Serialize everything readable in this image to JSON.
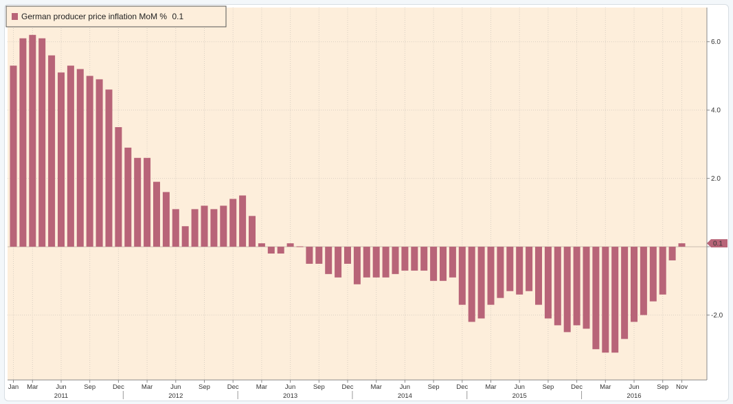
{
  "chart_data": {
    "type": "bar",
    "title": "German producer price inflation MoM % 0.1",
    "legend_label": "German producer price inflation MoM %",
    "legend_value": "0.1",
    "last_value_label": "0.1",
    "xlabel": "",
    "ylabel": "",
    "ylim": [
      -3.9,
      7.0
    ],
    "yticks": [
      6.0,
      4.0,
      2.0,
      0.0,
      -2.0
    ],
    "ytick_labels": [
      "6.0",
      "4.0",
      "2.0",
      "",
      "-2.0"
    ],
    "grid": true,
    "legend_position": "top-left",
    "x_month_ticks": [
      {
        "label": "Jan",
        "index": 0
      },
      {
        "label": "Mar",
        "index": 2
      },
      {
        "label": "Jun",
        "index": 5
      },
      {
        "label": "Sep",
        "index": 8
      },
      {
        "label": "Dec",
        "index": 11
      },
      {
        "label": "Mar",
        "index": 14
      },
      {
        "label": "Jun",
        "index": 17
      },
      {
        "label": "Sep",
        "index": 20
      },
      {
        "label": "Dec",
        "index": 23
      },
      {
        "label": "Mar",
        "index": 26
      },
      {
        "label": "Jun",
        "index": 29
      },
      {
        "label": "Sep",
        "index": 32
      },
      {
        "label": "Dec",
        "index": 35
      },
      {
        "label": "Mar",
        "index": 38
      },
      {
        "label": "Jun",
        "index": 41
      },
      {
        "label": "Sep",
        "index": 44
      },
      {
        "label": "Dec",
        "index": 47
      },
      {
        "label": "Mar",
        "index": 50
      },
      {
        "label": "Jun",
        "index": 53
      },
      {
        "label": "Sep",
        "index": 56
      },
      {
        "label": "Dec",
        "index": 59
      },
      {
        "label": "Mar",
        "index": 62
      },
      {
        "label": "Jun",
        "index": 65
      },
      {
        "label": "Sep",
        "index": 68
      },
      {
        "label": "Nov",
        "index": 70
      }
    ],
    "x_year_ticks": [
      {
        "label": "2011",
        "index": 5
      },
      {
        "label": "2012",
        "index": 17
      },
      {
        "label": "2013",
        "index": 29
      },
      {
        "label": "2014",
        "index": 41
      },
      {
        "label": "2015",
        "index": 53
      },
      {
        "label": "2016",
        "index": 65
      }
    ],
    "categories": [
      "Jan 2011",
      "Feb 2011",
      "Mar 2011",
      "Apr 2011",
      "May 2011",
      "Jun 2011",
      "Jul 2011",
      "Aug 2011",
      "Sep 2011",
      "Oct 2011",
      "Nov 2011",
      "Dec 2011",
      "Jan 2012",
      "Feb 2012",
      "Mar 2012",
      "Apr 2012",
      "May 2012",
      "Jun 2012",
      "Jul 2012",
      "Aug 2012",
      "Sep 2012",
      "Oct 2012",
      "Nov 2012",
      "Dec 2012",
      "Jan 2013",
      "Feb 2013",
      "Mar 2013",
      "Apr 2013",
      "May 2013",
      "Jun 2013",
      "Jul 2013",
      "Aug 2013",
      "Sep 2013",
      "Oct 2013",
      "Nov 2013",
      "Dec 2013",
      "Jan 2014",
      "Feb 2014",
      "Mar 2014",
      "Apr 2014",
      "May 2014",
      "Jun 2014",
      "Jul 2014",
      "Aug 2014",
      "Sep 2014",
      "Oct 2014",
      "Nov 2014",
      "Dec 2014",
      "Jan 2015",
      "Feb 2015",
      "Mar 2015",
      "Apr 2015",
      "May 2015",
      "Jun 2015",
      "Jul 2015",
      "Aug 2015",
      "Sep 2015",
      "Oct 2015",
      "Nov 2015",
      "Dec 2015",
      "Jan 2016",
      "Feb 2016",
      "Mar 2016",
      "Apr 2016",
      "May 2016",
      "Jun 2016",
      "Jul 2016",
      "Aug 2016",
      "Sep 2016",
      "Oct 2016",
      "Nov 2016"
    ],
    "series": [
      {
        "name": "German producer price inflation MoM %",
        "values": [
          5.3,
          6.1,
          6.2,
          6.1,
          5.6,
          5.1,
          5.3,
          5.2,
          5.0,
          4.9,
          4.6,
          3.5,
          2.9,
          2.6,
          2.6,
          1.9,
          1.6,
          1.1,
          0.6,
          1.1,
          1.2,
          1.1,
          1.2,
          1.4,
          1.5,
          0.9,
          0.1,
          -0.2,
          -0.2,
          0.1,
          0.0,
          -0.5,
          -0.5,
          -0.8,
          -0.9,
          -0.5,
          -1.1,
          -0.9,
          -0.9,
          -0.9,
          -0.8,
          -0.7,
          -0.7,
          -0.7,
          -1.0,
          -1.0,
          -0.9,
          -1.7,
          -2.2,
          -2.1,
          -1.7,
          -1.5,
          -1.3,
          -1.4,
          -1.3,
          -1.7,
          -2.1,
          -2.3,
          -2.5,
          -2.3,
          -2.4,
          -3.0,
          -3.1,
          -3.1,
          -2.7,
          -2.2,
          -2.0,
          -1.6,
          -1.4,
          -0.4,
          0.1
        ]
      }
    ],
    "colors": {
      "background": "#fdeedb",
      "bar": "#b86478",
      "grid": "#d9cfc2",
      "axis_text": "#333333",
      "legend_bg": "#fdeedb",
      "legend_border": "#555555"
    }
  }
}
